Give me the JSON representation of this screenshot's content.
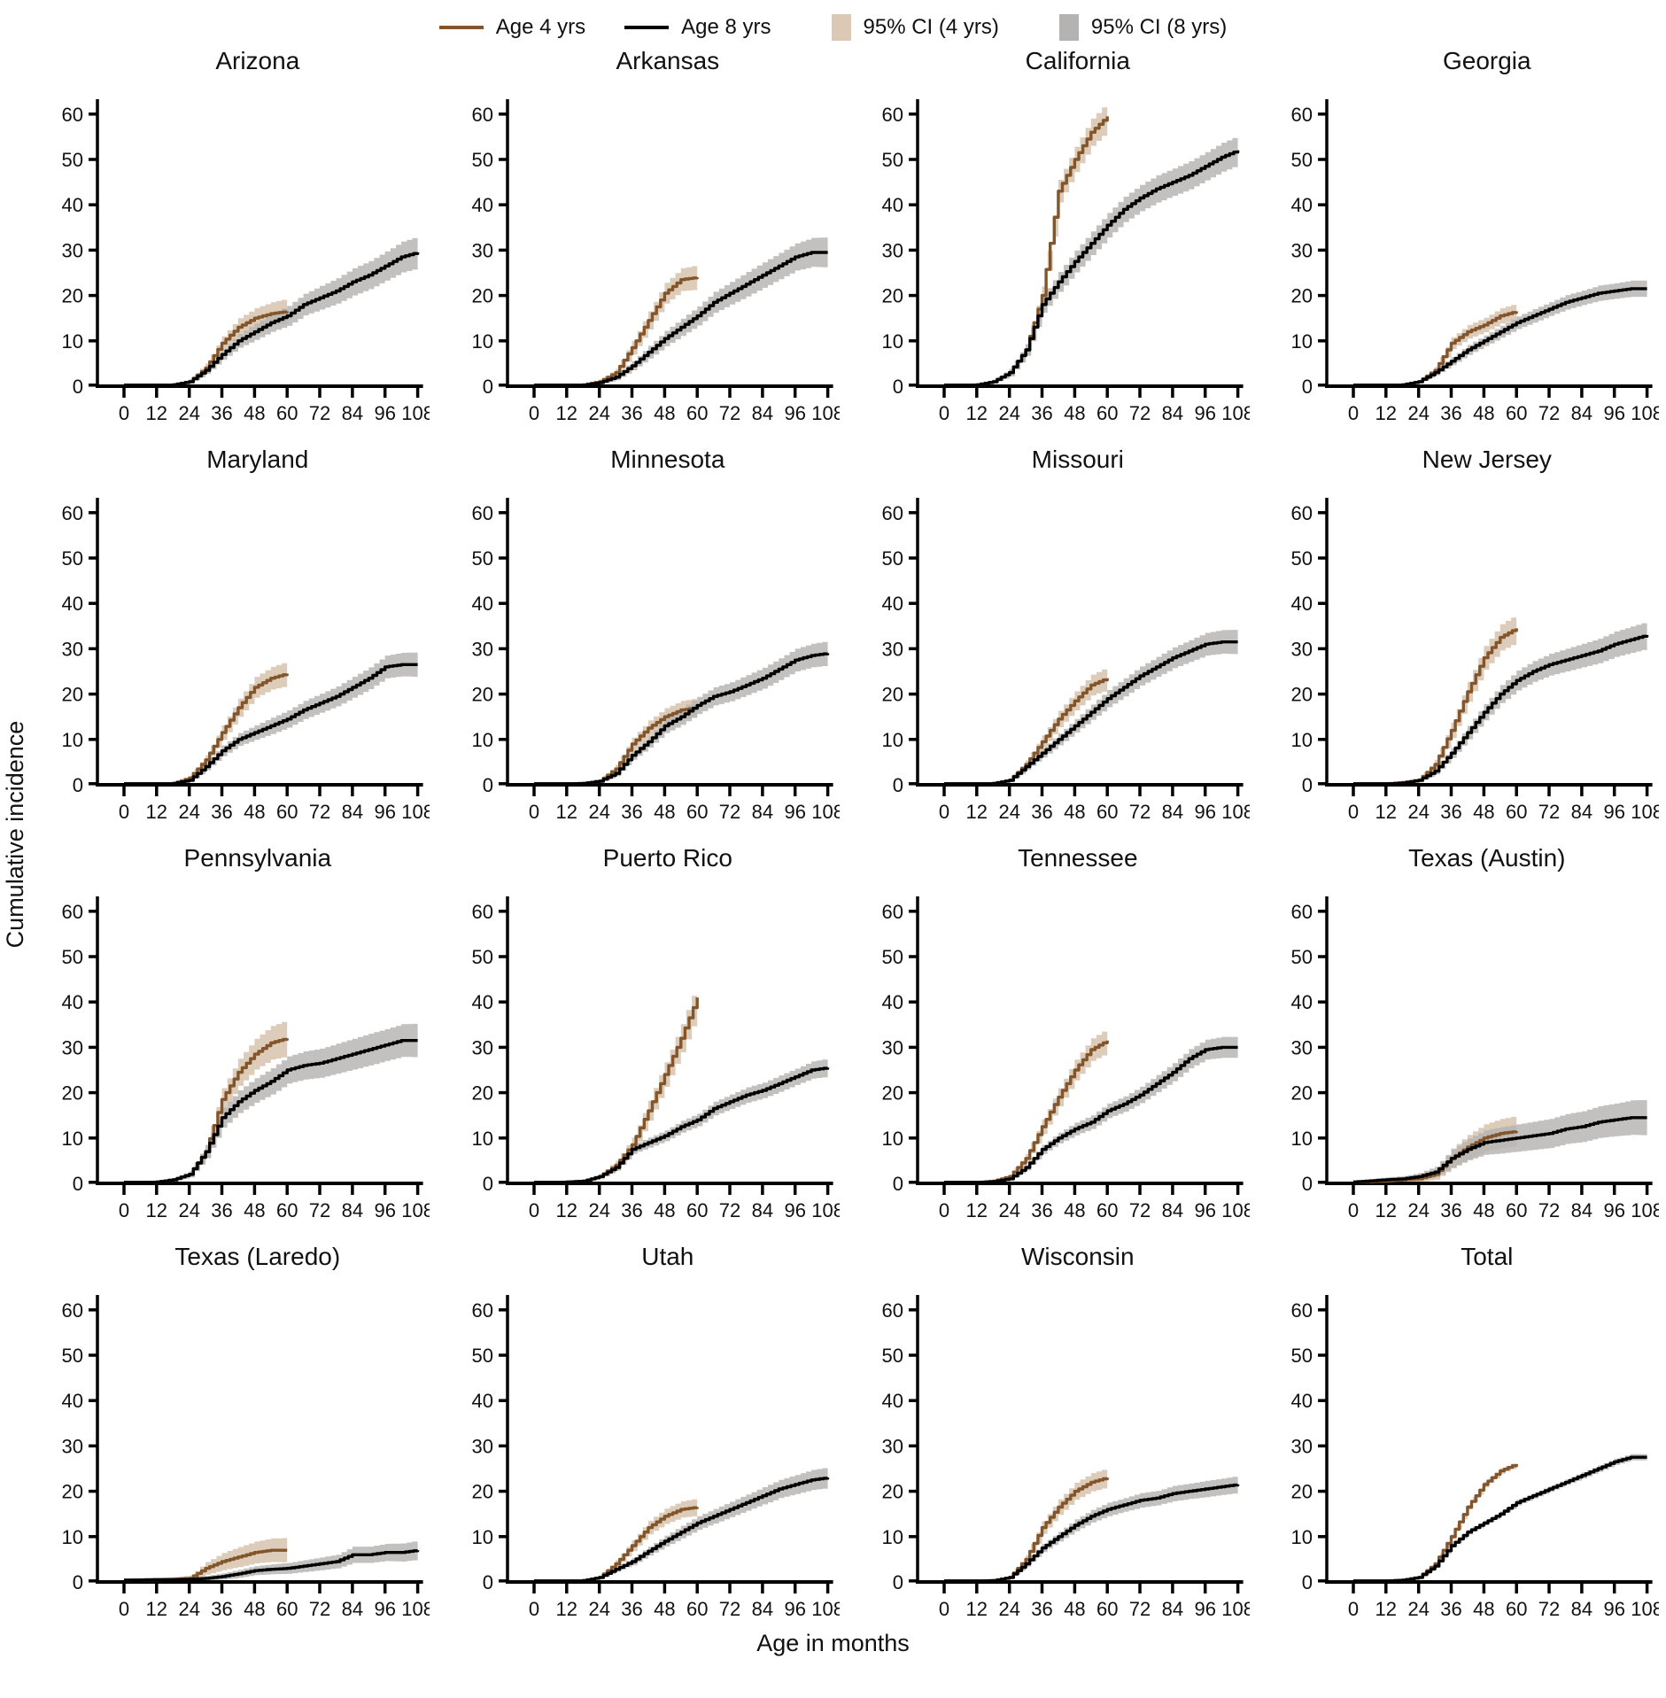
{
  "legend": {
    "age4_label": "Age 4 yrs",
    "age8_label": "Age 8 yrs",
    "ci4_label": "95% CI (4 yrs)",
    "ci8_label": "95% CI (8 yrs)"
  },
  "axes": {
    "x_label": "Age in months",
    "y_label": "Cumulative incidence"
  },
  "colors": {
    "age4_line": "#82552b",
    "age8_line": "#000000",
    "ci4_fill": "#dbc9b6",
    "ci8_fill": "#b5b3b1",
    "axis": "#000000"
  },
  "chart_data": {
    "type": "line",
    "style": "step-cumulative-incidence",
    "x_ticks": [
      0,
      12,
      24,
      36,
      48,
      60,
      72,
      84,
      96,
      108
    ],
    "y_ticks": [
      0,
      10,
      20,
      30,
      40,
      50,
      60
    ],
    "xlim": [
      0,
      108
    ],
    "ylim": [
      0,
      65
    ],
    "x4": [
      0,
      12,
      18,
      24,
      30,
      36,
      42,
      48,
      54,
      60
    ],
    "x8": [
      0,
      12,
      18,
      24,
      30,
      36,
      42,
      48,
      54,
      60,
      66,
      72,
      78,
      84,
      90,
      96,
      102,
      108
    ],
    "series_names": [
      "Age 4 yrs",
      "Age 8 yrs"
    ],
    "panels": [
      {
        "title": "Arizona",
        "y4": [
          0,
          0,
          0.3,
          1,
          4,
          9.5,
          13,
          15,
          16,
          16.5
        ],
        "ci4": [
          0,
          0,
          0.3,
          0.5,
          1,
          1.5,
          2,
          2.2,
          2.5,
          2.8
        ],
        "y8": [
          0,
          0,
          0.3,
          1,
          3.5,
          7,
          10,
          12,
          14,
          15.5,
          18,
          19.5,
          21,
          23,
          24.5,
          26.5,
          28.5,
          29.5
        ],
        "ci8": [
          0,
          0,
          0.2,
          0.4,
          0.8,
          1.2,
          1.5,
          1.8,
          2,
          2.2,
          2.4,
          2.6,
          2.8,
          3,
          3.1,
          3.2,
          3.4,
          3.5
        ]
      },
      {
        "title": "Arkansas",
        "y4": [
          0,
          0,
          0.3,
          1,
          3,
          8.5,
          14.5,
          20.5,
          23.5,
          24
        ],
        "ci4": [
          0,
          0,
          0.2,
          0.5,
          0.8,
          1.5,
          2,
          2.3,
          2.5,
          2.7
        ],
        "y8": [
          0,
          0,
          0.2,
          0.8,
          2,
          4.5,
          7.5,
          10.5,
          13,
          15.5,
          18.5,
          20.5,
          22.5,
          24.5,
          26.5,
          28.5,
          29.5,
          29.5
        ],
        "ci8": [
          0,
          0,
          0.2,
          0.4,
          0.7,
          1,
          1.4,
          1.7,
          1.9,
          2.1,
          2.3,
          2.5,
          2.7,
          2.8,
          2.9,
          3,
          3.2,
          3.3
        ]
      },
      {
        "title": "California",
        "y4": [
          0,
          0.3,
          1,
          3,
          8,
          20,
          43,
          50,
          56,
          59.5
        ],
        "ci4": [
          0,
          0.2,
          0.4,
          0.8,
          1.3,
          2,
          2.5,
          2.8,
          3,
          3.2
        ],
        "y8": [
          0,
          0.3,
          1,
          3,
          8,
          18,
          23,
          27.5,
          31.5,
          35.5,
          39,
          41.5,
          43.5,
          45,
          46.5,
          48.5,
          50.5,
          52
        ],
        "ci8": [
          0,
          0.2,
          0.4,
          0.8,
          1.2,
          1.8,
          2.2,
          2.4,
          2.6,
          2.7,
          2.8,
          2.9,
          3,
          3,
          3.1,
          3.1,
          3.2,
          3.2
        ]
      },
      {
        "title": "Georgia",
        "y4": [
          0,
          0,
          0.3,
          1,
          3.5,
          9.5,
          12,
          13.5,
          15.5,
          16.5
        ],
        "ci4": [
          0,
          0,
          0.2,
          0.4,
          0.8,
          1.3,
          1.5,
          1.6,
          1.7,
          1.8
        ],
        "y8": [
          0,
          0,
          0.3,
          1,
          3,
          5.5,
          8,
          10,
          12,
          14,
          15.5,
          17,
          18.5,
          19.5,
          20.5,
          21,
          21.5,
          21.5
        ],
        "ci8": [
          0,
          0,
          0.2,
          0.3,
          0.6,
          0.9,
          1.1,
          1.2,
          1.3,
          1.4,
          1.5,
          1.5,
          1.6,
          1.6,
          1.7,
          1.7,
          1.8,
          1.8
        ]
      },
      {
        "title": "Maryland",
        "y4": [
          0,
          0,
          0.3,
          1.5,
          5.5,
          11.5,
          17,
          21.5,
          23.5,
          24.5
        ],
        "ci4": [
          0,
          0,
          0.2,
          0.5,
          1,
          1.6,
          2,
          2.3,
          2.5,
          2.7
        ],
        "y8": [
          0,
          0,
          0.3,
          1,
          4,
          7.5,
          10,
          11.5,
          13,
          14.5,
          16.5,
          18,
          19.5,
          21.5,
          23.5,
          26,
          26.5,
          26.5
        ],
        "ci8": [
          0,
          0,
          0.2,
          0.4,
          0.8,
          1.2,
          1.4,
          1.6,
          1.8,
          1.9,
          2,
          2.1,
          2.2,
          2.3,
          2.4,
          2.5,
          2.6,
          2.7
        ]
      },
      {
        "title": "Minnesota",
        "y4": [
          0,
          0.2,
          0.3,
          0.8,
          3.5,
          9,
          12.5,
          15,
          16.5,
          17
        ],
        "ci4": [
          0,
          0.2,
          0.3,
          0.4,
          0.9,
          1.4,
          1.7,
          1.9,
          2,
          2.1
        ],
        "y8": [
          0,
          0.2,
          0.3,
          0.8,
          2.5,
          6.5,
          9.5,
          13,
          15,
          17.5,
          19.5,
          20.5,
          22,
          23.5,
          25.5,
          27.5,
          28.5,
          29
        ],
        "ci8": [
          0,
          0.1,
          0.2,
          0.3,
          0.6,
          1,
          1.3,
          1.6,
          1.8,
          1.9,
          2,
          2.1,
          2.2,
          2.3,
          2.4,
          2.5,
          2.6,
          2.7
        ]
      },
      {
        "title": "Missouri",
        "y4": [
          0,
          0,
          0.3,
          1,
          4.5,
          9.5,
          14.5,
          18.5,
          22,
          23.5
        ],
        "ci4": [
          0,
          0,
          0.2,
          0.4,
          0.9,
          1.4,
          1.8,
          2.1,
          2.3,
          2.5
        ],
        "y8": [
          0,
          0,
          0.3,
          1,
          4,
          7,
          10,
          13,
          16,
          19,
          21.5,
          24,
          26,
          28,
          29.5,
          31,
          31.5,
          31.5
        ],
        "ci8": [
          0,
          0,
          0.2,
          0.4,
          0.7,
          1,
          1.3,
          1.5,
          1.7,
          1.9,
          2,
          2.1,
          2.2,
          2.3,
          2.4,
          2.5,
          2.6,
          2.7
        ]
      },
      {
        "title": "New Jersey",
        "y4": [
          0,
          0.2,
          0.5,
          1,
          4.5,
          12,
          20.5,
          28,
          32.5,
          34.5
        ],
        "ci4": [
          0,
          0.1,
          0.3,
          0.5,
          1,
          1.7,
          2.2,
          2.6,
          2.9,
          3.1
        ],
        "y8": [
          0,
          0.2,
          0.4,
          1,
          3,
          7,
          11.5,
          16,
          20,
          23,
          25,
          26.5,
          27.5,
          28.5,
          29.5,
          31,
          32,
          33
        ],
        "ci8": [
          0,
          0.1,
          0.2,
          0.4,
          0.7,
          1.1,
          1.5,
          1.8,
          2,
          2.2,
          2.3,
          2.4,
          2.5,
          2.6,
          2.7,
          2.8,
          2.9,
          3
        ]
      },
      {
        "title": "Pennsylvania",
        "y4": [
          0,
          0.3,
          0.8,
          2,
          7,
          18.5,
          24.5,
          28.5,
          31,
          32
        ],
        "ci4": [
          0,
          0.2,
          0.4,
          0.7,
          1.5,
          2.5,
          3,
          3.4,
          3.7,
          4
        ],
        "y8": [
          0,
          0.3,
          0.8,
          2,
          7,
          14.5,
          18,
          20.5,
          22.5,
          25,
          26,
          26.5,
          27.5,
          28.5,
          29.5,
          30.5,
          31.5,
          31.5
        ],
        "ci8": [
          0,
          0.2,
          0.4,
          0.6,
          1.4,
          2.2,
          2.5,
          2.7,
          2.9,
          3,
          3.1,
          3.2,
          3.3,
          3.4,
          3.5,
          3.5,
          3.6,
          3.7
        ]
      },
      {
        "title": "Puerto Rico",
        "y4": [
          0,
          0.3,
          0.5,
          1.5,
          4,
          8.5,
          16,
          24,
          32,
          41
        ],
        "ci4": [
          0,
          0.2,
          0.3,
          0.6,
          1,
          1.6,
          2.2,
          2.7,
          3.1,
          3.5
        ],
        "y8": [
          0,
          0.3,
          0.5,
          1.5,
          3.5,
          7.5,
          9,
          10.5,
          12.5,
          14,
          16.5,
          18,
          19.5,
          20.5,
          22,
          23.5,
          25,
          25.5
        ],
        "ci8": [
          0,
          0.1,
          0.2,
          0.4,
          0.7,
          1,
          1.1,
          1.2,
          1.3,
          1.4,
          1.5,
          1.6,
          1.7,
          1.7,
          1.8,
          1.8,
          1.9,
          2
        ]
      },
      {
        "title": "Tennessee",
        "y4": [
          0,
          0.2,
          0.5,
          1.5,
          5.5,
          12.5,
          19,
          25,
          29.5,
          31.5
        ],
        "ci4": [
          0,
          0.1,
          0.3,
          0.5,
          1,
          1.6,
          2,
          2.3,
          2.5,
          2.7
        ],
        "y8": [
          0,
          0.2,
          0.4,
          1,
          3.5,
          7.5,
          10,
          12,
          13.5,
          16,
          17.5,
          19.5,
          22,
          24.5,
          27.5,
          29.5,
          30,
          30
        ],
        "ci8": [
          0,
          0.1,
          0.2,
          0.3,
          0.6,
          1,
          1.2,
          1.4,
          1.5,
          1.6,
          1.7,
          1.8,
          1.9,
          2,
          2.1,
          2.2,
          2.3,
          2.3
        ]
      },
      {
        "title": "Texas (Austin)",
        "y4": [
          0.3,
          0.5,
          0.8,
          1,
          2,
          5.5,
          8,
          10,
          11,
          11.5
        ],
        "ci4": [
          0.3,
          0.4,
          0.5,
          0.7,
          1.2,
          2.2,
          2.7,
          3,
          3.2,
          3.4
        ],
        "y8": [
          0.3,
          0.8,
          1,
          1.5,
          2.5,
          5.5,
          7.5,
          9,
          9.5,
          10,
          10.5,
          11,
          12,
          12.5,
          13.5,
          14,
          14.5,
          14.5
        ],
        "ci8": [
          0.3,
          0.5,
          0.6,
          0.8,
          1.2,
          2,
          2.4,
          2.7,
          2.9,
          3,
          3.1,
          3.2,
          3.3,
          3.4,
          3.5,
          3.6,
          3.8,
          3.9
        ]
      },
      {
        "title": "Texas (Laredo)",
        "y4": [
          0.4,
          0.5,
          0.6,
          0.8,
          3,
          4.5,
          5.5,
          6.5,
          7,
          7
        ],
        "ci4": [
          0.3,
          0.4,
          0.5,
          0.6,
          1.4,
          1.9,
          2.2,
          2.4,
          2.6,
          2.7
        ],
        "y8": [
          0.4,
          0.5,
          0.5,
          0.6,
          0.8,
          1.2,
          1.8,
          2.5,
          2.8,
          3,
          3.5,
          4,
          4.5,
          6,
          6,
          6.5,
          6.5,
          7
        ],
        "ci8": [
          0.3,
          0.3,
          0.4,
          0.4,
          0.5,
          0.7,
          0.9,
          1,
          1.1,
          1.2,
          1.3,
          1.4,
          1.5,
          1.8,
          1.8,
          1.9,
          2,
          2.1
        ]
      },
      {
        "title": "Utah",
        "y4": [
          0,
          0,
          0.3,
          1,
          4,
          8,
          12,
          14.5,
          16,
          16.5
        ],
        "ci4": [
          0,
          0,
          0.2,
          0.4,
          0.8,
          1.2,
          1.5,
          1.7,
          1.8,
          1.9
        ],
        "y8": [
          0,
          0,
          0.3,
          1,
          2.8,
          4.5,
          6.8,
          9,
          11,
          13,
          14.5,
          16,
          17.5,
          19,
          20.5,
          21.5,
          22.5,
          23
        ],
        "ci8": [
          0,
          0,
          0.2,
          0.3,
          0.5,
          0.8,
          1,
          1.2,
          1.4,
          1.5,
          1.6,
          1.7,
          1.8,
          1.9,
          2,
          2.1,
          2.2,
          2.3
        ]
      },
      {
        "title": "Wisconsin",
        "y4": [
          0,
          0.2,
          0.3,
          1,
          5,
          12,
          16.5,
          20,
          22,
          23
        ],
        "ci4": [
          0,
          0.1,
          0.2,
          0.4,
          0.9,
          1.4,
          1.7,
          1.9,
          2,
          2.1
        ],
        "y8": [
          0,
          0.2,
          0.3,
          1,
          4,
          7.5,
          10,
          12.5,
          14.5,
          16,
          17,
          18,
          18.5,
          19.5,
          20,
          20.5,
          21,
          21.5
        ],
        "ci8": [
          0,
          0.1,
          0.2,
          0.3,
          0.6,
          0.9,
          1.1,
          1.3,
          1.4,
          1.5,
          1.5,
          1.6,
          1.6,
          1.7,
          1.7,
          1.8,
          1.8,
          1.9
        ]
      },
      {
        "title": "Total",
        "y4": [
          0,
          0.2,
          0.4,
          1,
          4,
          10,
          16.5,
          21.5,
          24.5,
          26
        ],
        "ci4": [
          0,
          0.1,
          0.2,
          0.3,
          0.4,
          0.5,
          0.5,
          0.6,
          0.6,
          0.6
        ],
        "y8": [
          0,
          0.2,
          0.4,
          1,
          3.5,
          8,
          11,
          13,
          15,
          17.5,
          19,
          20.5,
          22,
          23.5,
          25,
          26.5,
          27.5,
          27.5
        ],
        "ci8": [
          0,
          0.1,
          0.1,
          0.2,
          0.3,
          0.4,
          0.5,
          0.5,
          0.5,
          0.6,
          0.6,
          0.6,
          0.6,
          0.7,
          0.7,
          0.7,
          0.7,
          0.7
        ]
      }
    ]
  }
}
